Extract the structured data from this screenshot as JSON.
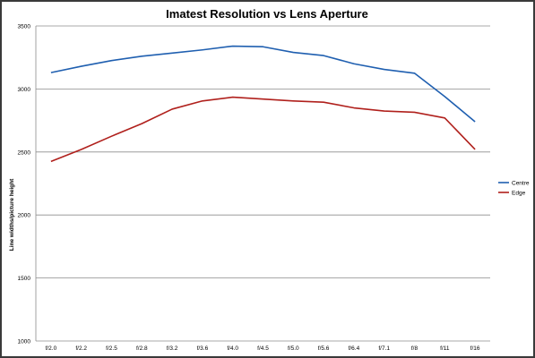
{
  "chart_data": {
    "type": "line",
    "title": "Imatest Resolution vs Lens Aperture",
    "xlabel": "",
    "ylabel": "Line widths/picture height",
    "ylim": [
      1000,
      3500
    ],
    "yticks": [
      1000,
      1500,
      2000,
      2500,
      3000,
      3500
    ],
    "grid": true,
    "legend_position": "right",
    "categories": [
      "f/2.0",
      "f/2.2",
      "f/2.5",
      "f/2.8",
      "f/3.2",
      "f/3.6",
      "f/4.0",
      "f/4.5",
      "f/5.0",
      "f/5.6",
      "f/6.4",
      "f/7.1",
      "f/8",
      "f/11",
      "f/16"
    ],
    "series": [
      {
        "name": "Centre",
        "color": "#1f5fb0",
        "values": [
          3130,
          3180,
          3225,
          3260,
          3285,
          3310,
          3340,
          3335,
          3290,
          3265,
          3200,
          3155,
          3125,
          2940,
          2740
        ]
      },
      {
        "name": "Edge",
        "color": "#b0201c",
        "values": [
          2425,
          2520,
          2625,
          2725,
          2840,
          2905,
          2935,
          2920,
          2905,
          2895,
          2850,
          2825,
          2815,
          2770,
          2520
        ]
      }
    ]
  }
}
